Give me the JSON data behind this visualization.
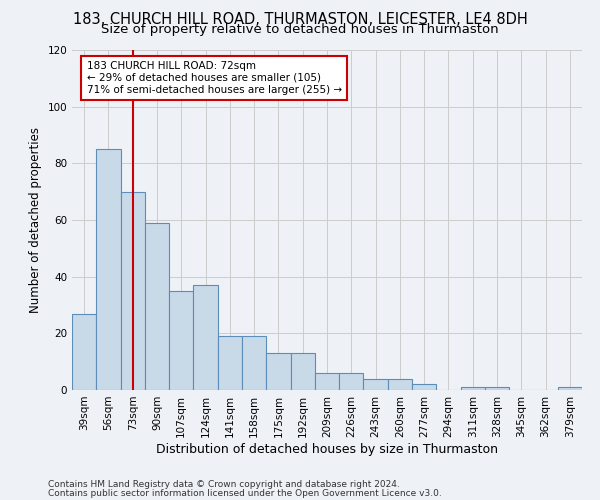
{
  "title": "183, CHURCH HILL ROAD, THURMASTON, LEICESTER, LE4 8DH",
  "subtitle": "Size of property relative to detached houses in Thurmaston",
  "xlabel": "Distribution of detached houses by size in Thurmaston",
  "ylabel": "Number of detached properties",
  "footnote1": "Contains HM Land Registry data © Crown copyright and database right 2024.",
  "footnote2": "Contains public sector information licensed under the Open Government Licence v3.0.",
  "categories": [
    "39sqm",
    "56sqm",
    "73sqm",
    "90sqm",
    "107sqm",
    "124sqm",
    "141sqm",
    "158sqm",
    "175sqm",
    "192sqm",
    "209sqm",
    "226sqm",
    "243sqm",
    "260sqm",
    "277sqm",
    "294sqm",
    "311sqm",
    "328sqm",
    "345sqm",
    "362sqm",
    "379sqm"
  ],
  "values": [
    27,
    85,
    70,
    59,
    35,
    37,
    19,
    19,
    13,
    13,
    6,
    6,
    4,
    4,
    2,
    0,
    1,
    1,
    0,
    0,
    1
  ],
  "bar_color": "#c8d9e8",
  "bar_edge_color": "#5b8db8",
  "bar_edge_width": 0.8,
  "vline_index": 2,
  "vline_color": "#cc0000",
  "annotation_line1": "183 CHURCH HILL ROAD: 72sqm",
  "annotation_line2": "← 29% of detached houses are smaller (105)",
  "annotation_line3": "71% of semi-detached houses are larger (255) →",
  "annotation_box_edge_color": "#cc0000",
  "annotation_box_facecolor": "#ffffff",
  "ylim": [
    0,
    120
  ],
  "yticks": [
    0,
    20,
    40,
    60,
    80,
    100,
    120
  ],
  "grid_color": "#cccccc",
  "bg_color": "#eef2f7",
  "title_fontsize": 10.5,
  "subtitle_fontsize": 9.5,
  "axis_label_fontsize": 8.5,
  "tick_fontsize": 7.5,
  "annotation_fontsize": 7.5,
  "xlabel_fontsize": 9,
  "footnote_fontsize": 6.5
}
